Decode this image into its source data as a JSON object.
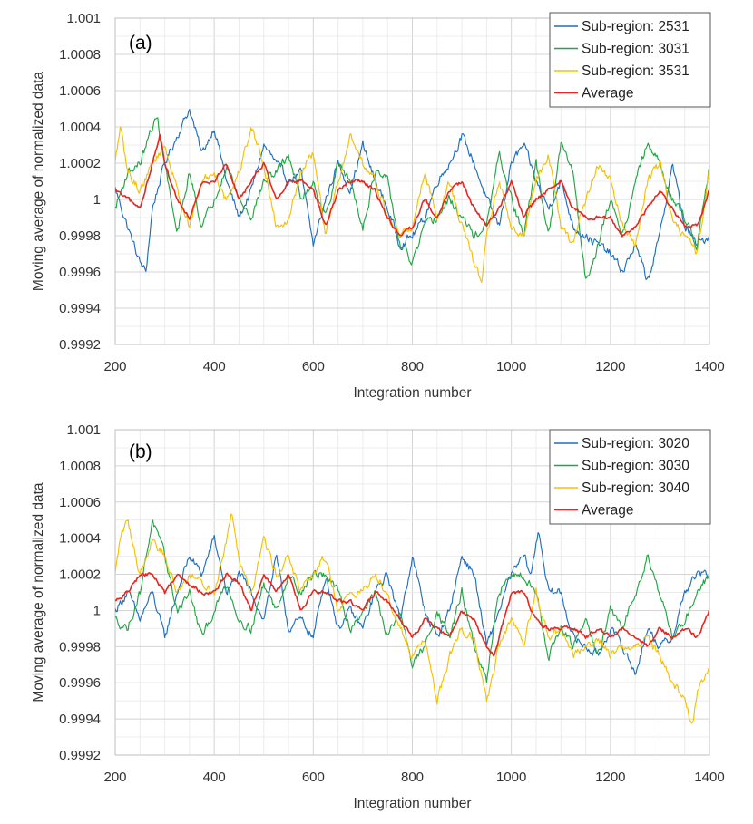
{
  "chart_data": [
    {
      "type": "line",
      "panel_label": "(a)",
      "xlabel": "Integration number",
      "ylabel": "Moving average of normalized data",
      "xlim": [
        200,
        1400
      ],
      "ylim": [
        0.9992,
        1.001
      ],
      "x_ticks": [
        200,
        400,
        600,
        800,
        1000,
        1200,
        1400
      ],
      "x_tick_labels": [
        "200",
        "400",
        "600",
        "800",
        "1000",
        "1200",
        "1400"
      ],
      "y_ticks": [
        0.9992,
        0.9994,
        0.9996,
        0.9998,
        1.0,
        1.0002,
        1.0004,
        1.0006,
        1.0008,
        1.001
      ],
      "y_tick_labels": [
        "0.9992",
        "0.9994",
        "0.9996",
        "0.9998",
        "1",
        "1.0002",
        "1.0004",
        "1.0006",
        "1.0008",
        "1.001"
      ],
      "legend_position": "top-right",
      "series": [
        {
          "name": "Sub-region: 2531",
          "color": "#1f6fc0",
          "x": [
            200,
            225,
            250,
            262,
            275,
            300,
            325,
            350,
            375,
            400,
            425,
            450,
            475,
            500,
            525,
            550,
            575,
            600,
            625,
            650,
            675,
            700,
            725,
            750,
            775,
            800,
            825,
            850,
            875,
            900,
            925,
            950,
            975,
            1000,
            1025,
            1050,
            1075,
            1100,
            1125,
            1150,
            1175,
            1200,
            1225,
            1250,
            1275,
            1300,
            1325,
            1350,
            1375,
            1400
          ],
          "values": [
            1.00006,
            0.99985,
            0.99965,
            0.9996,
            0.99995,
            1.0002,
            1.00035,
            1.0005,
            1.00025,
            1.0004,
            1.0001,
            0.9999,
            1.00005,
            1.0003,
            1.0002,
            1.0001,
            1.00015,
            0.99975,
            1.0,
            1.0002,
            1.00005,
            1.0003,
            1.0001,
            0.99995,
            0.99975,
            0.9998,
            0.9999,
            1.0001,
            1.0002,
            1.00035,
            1.0002,
            1.0,
            0.99985,
            1.0002,
            1.0003,
            1.0001,
            0.99995,
            1.0001,
            0.99985,
            0.9998,
            0.99975,
            0.9997,
            0.9996,
            0.99975,
            0.99955,
            0.9998,
            1.0002,
            0.99985,
            0.99975,
            0.9998
          ]
        },
        {
          "name": "Sub-region: 3031",
          "color": "#21a644",
          "x": [
            200,
            225,
            250,
            275,
            285,
            300,
            325,
            350,
            375,
            400,
            425,
            450,
            475,
            500,
            525,
            550,
            575,
            600,
            625,
            650,
            675,
            700,
            725,
            750,
            775,
            800,
            825,
            850,
            875,
            900,
            925,
            950,
            975,
            1000,
            1025,
            1050,
            1075,
            1100,
            1125,
            1150,
            1175,
            1200,
            1225,
            1250,
            1275,
            1300,
            1325,
            1350,
            1375,
            1400
          ],
          "values": [
            0.99995,
            1.00015,
            1.0002,
            1.0004,
            1.00045,
            1.0002,
            0.9998,
            1.00015,
            0.99985,
            1.0,
            1.0002,
            1.0,
            0.9999,
            1.0001,
            1.00015,
            1.00025,
            1.0,
            1.0001,
            0.9999,
            1.0002,
            1.0001,
            0.99985,
            1.00015,
            1.0001,
            0.99975,
            0.99965,
            0.99985,
            0.9999,
            1.0,
            0.9999,
            0.9998,
            0.99985,
            1.00025,
            1.0,
            0.9998,
            1.0002,
            0.9998,
            1.0003,
            1.00015,
            0.99955,
            0.99975,
            1.0,
            0.9998,
            1.0001,
            1.0003,
            1.0002,
            1.0,
            0.9999,
            0.99975,
            1.0002
          ]
        },
        {
          "name": "Sub-region: 3531",
          "color": "#f5c000",
          "x": [
            200,
            210,
            225,
            250,
            275,
            300,
            325,
            350,
            375,
            400,
            425,
            450,
            475,
            500,
            525,
            550,
            575,
            600,
            625,
            650,
            675,
            700,
            725,
            750,
            775,
            800,
            825,
            850,
            875,
            900,
            925,
            940,
            950,
            975,
            1000,
            1025,
            1050,
            1075,
            1100,
            1125,
            1150,
            1175,
            1200,
            1225,
            1250,
            1275,
            1300,
            1325,
            1350,
            1375,
            1400
          ],
          "values": [
            1.0002,
            1.0004,
            1.00015,
            1.00005,
            1.0002,
            1.0003,
            1.00005,
            0.99985,
            1.0001,
            1.00015,
            1.0,
            1.00015,
            1.0004,
            1.0002,
            0.99985,
            0.9999,
            1.00015,
            1.00025,
            0.9998,
            1.0001,
            1.00035,
            1.0002,
            1.0001,
            0.9999,
            0.9998,
            0.99985,
            1.00015,
            0.9999,
            1.0001,
            0.99985,
            0.99965,
            0.99955,
            0.9998,
            1.0001,
            0.99985,
            0.9998,
            1.0001,
            1.00025,
            0.99985,
            0.99975,
            1.0,
            1.0002,
            1.0001,
            0.99985,
            0.99975,
            1.0001,
            1.0002,
            0.9999,
            0.9998,
            0.9997,
            1.00015
          ]
        },
        {
          "name": "Average",
          "color": "#e8251f",
          "x": [
            200,
            225,
            250,
            275,
            290,
            300,
            325,
            350,
            375,
            400,
            425,
            450,
            475,
            500,
            525,
            550,
            575,
            600,
            625,
            650,
            675,
            700,
            725,
            750,
            775,
            800,
            825,
            850,
            875,
            900,
            925,
            950,
            975,
            1000,
            1025,
            1050,
            1075,
            1100,
            1125,
            1150,
            1175,
            1200,
            1225,
            1250,
            1275,
            1300,
            1325,
            1350,
            1375,
            1400
          ],
          "values": [
            1.00005,
            1.0,
            0.99995,
            1.0002,
            1.00035,
            1.0002,
            1.0,
            0.9999,
            1.0001,
            1.0001,
            1.0002,
            1.0,
            1.0001,
            1.0002,
            1.0,
            1.0001,
            1.0001,
            1.00005,
            0.99985,
            1.00005,
            1.0001,
            1.0001,
            1.00005,
            0.9999,
            0.9998,
            0.99985,
            1.0,
            0.9999,
            1.00005,
            1.0001,
            0.99995,
            0.99985,
            0.99995,
            1.0001,
            0.9999,
            1.0,
            1.00005,
            1.0001,
            0.99995,
            0.9999,
            0.9999,
            0.9999,
            0.9998,
            0.99985,
            0.99995,
            1.00005,
            0.99995,
            0.99985,
            0.99985,
            1.00005
          ]
        }
      ]
    },
    {
      "type": "line",
      "panel_label": "(b)",
      "xlabel": "Integration number",
      "ylabel": "Moving average of normalized data",
      "xlim": [
        200,
        1400
      ],
      "ylim": [
        0.9992,
        1.001
      ],
      "x_ticks": [
        200,
        400,
        600,
        800,
        1000,
        1200,
        1400
      ],
      "x_tick_labels": [
        "200",
        "400",
        "600",
        "800",
        "1000",
        "1200",
        "1400"
      ],
      "y_ticks": [
        0.9992,
        0.9994,
        0.9996,
        0.9998,
        1.0,
        1.0002,
        1.0004,
        1.0006,
        1.0008,
        1.001
      ],
      "y_tick_labels": [
        "0.9992",
        "0.9994",
        "0.9996",
        "0.9998",
        "1",
        "1.0002",
        "1.0004",
        "1.0006",
        "1.0008",
        "1.001"
      ],
      "legend_position": "top-right",
      "series": [
        {
          "name": "Sub-region: 3020",
          "color": "#1f6fc0",
          "x": [
            200,
            225,
            250,
            275,
            300,
            325,
            350,
            375,
            400,
            425,
            450,
            475,
            500,
            525,
            550,
            575,
            600,
            625,
            650,
            675,
            700,
            725,
            750,
            775,
            800,
            825,
            850,
            875,
            900,
            925,
            950,
            975,
            1000,
            1025,
            1040,
            1055,
            1075,
            1100,
            1125,
            1150,
            1175,
            1200,
            1225,
            1250,
            1275,
            1300,
            1325,
            1350,
            1375,
            1400
          ],
          "values": [
            1.0,
            1.0001,
            0.99995,
            1.0001,
            0.99985,
            1.0001,
            1.0003,
            1.0002,
            1.0004,
            1.0001,
            1.0002,
            1.0001,
            0.99995,
            1.0003,
            0.9999,
            0.99995,
            0.99985,
            1.0002,
            0.9999,
            1.0,
            0.9999,
            1.0001,
            1.0002,
            0.99995,
            1.0003,
            1.0,
            0.99985,
            1.0,
            1.0003,
            1.0002,
            0.9998,
            1.0,
            1.0002,
            1.0003,
            1.0002,
            1.00045,
            1.0001,
            1.0001,
            0.99985,
            0.9998,
            0.99975,
            0.9999,
            0.9998,
            0.99965,
            0.9999,
            0.9998,
            0.99985,
            1.0001,
            1.0002,
            1.0002
          ]
        },
        {
          "name": "Sub-region: 3030",
          "color": "#21a644",
          "x": [
            200,
            225,
            250,
            275,
            300,
            325,
            350,
            375,
            400,
            425,
            450,
            475,
            500,
            525,
            550,
            575,
            600,
            625,
            650,
            675,
            700,
            725,
            750,
            775,
            800,
            825,
            850,
            875,
            900,
            925,
            950,
            975,
            1000,
            1025,
            1050,
            1075,
            1100,
            1125,
            1150,
            1175,
            1200,
            1225,
            1250,
            1275,
            1300,
            1325,
            1350,
            1375,
            1400
          ],
          "values": [
            0.99995,
            0.9999,
            1.0001,
            1.0005,
            1.0003,
            1.0,
            1.0001,
            0.99985,
            1.0,
            1.00015,
            0.99995,
            0.9999,
            1.00015,
            1.0,
            1.0002,
            1.0001,
            1.0002,
            1.0002,
            1.0001,
            0.9999,
            1.0,
            1.0001,
            0.99985,
            1.0,
            0.9997,
            0.9998,
            1.0,
            0.99985,
            1.0001,
            0.9998,
            0.9996,
            1.0001,
            1.0002,
            1.0002,
            1.0001,
            0.99975,
            0.9999,
            0.9998,
            0.99995,
            0.99975,
            1.0,
            0.9999,
            1.0001,
            1.0003,
            1.0001,
            0.99985,
            0.99995,
            1.0001,
            1.0002
          ]
        },
        {
          "name": "Sub-region: 3040",
          "color": "#f5c000",
          "x": [
            200,
            210,
            225,
            250,
            275,
            300,
            325,
            350,
            375,
            400,
            425,
            435,
            450,
            475,
            500,
            525,
            550,
            575,
            600,
            625,
            650,
            675,
            700,
            725,
            750,
            775,
            800,
            825,
            850,
            875,
            900,
            925,
            950,
            975,
            1000,
            1025,
            1050,
            1075,
            1100,
            1125,
            1150,
            1175,
            1200,
            1225,
            1250,
            1275,
            1300,
            1325,
            1350,
            1365,
            1375,
            1400
          ],
          "values": [
            1.0002,
            1.0004,
            1.0005,
            1.0002,
            1.0004,
            1.0003,
            1.0001,
            1.0002,
            1.00015,
            1.0001,
            1.0004,
            1.00055,
            1.0003,
            1.0001,
            1.0004,
            1.0002,
            1.0003,
            1.0001,
            1.0002,
            1.0003,
            1.0,
            1.0001,
            1.0001,
            1.0002,
            1.0001,
            0.9999,
            0.99975,
            0.99985,
            0.9995,
            0.99975,
            0.9999,
            0.99985,
            0.9995,
            0.9998,
            0.99995,
            0.9998,
            1.0001,
            0.99985,
            0.9999,
            0.99975,
            0.9998,
            0.99985,
            0.99975,
            0.9998,
            0.9998,
            0.99985,
            0.99975,
            0.9996,
            0.9995,
            0.99935,
            0.99955,
            0.9997
          ]
        },
        {
          "name": "Average",
          "color": "#e8251f",
          "x": [
            200,
            225,
            250,
            275,
            300,
            325,
            350,
            375,
            400,
            425,
            450,
            475,
            500,
            525,
            550,
            575,
            600,
            625,
            650,
            675,
            700,
            725,
            750,
            775,
            800,
            825,
            850,
            875,
            900,
            925,
            950,
            965,
            975,
            1000,
            1025,
            1050,
            1075,
            1100,
            1125,
            1150,
            1175,
            1200,
            1225,
            1250,
            1275,
            1300,
            1325,
            1350,
            1375,
            1400
          ],
          "values": [
            1.00005,
            1.0001,
            1.0002,
            1.0002,
            1.0001,
            1.0002,
            1.00015,
            1.0001,
            1.0001,
            1.0002,
            1.00015,
            1.0,
            1.0002,
            1.0001,
            1.0002,
            1.0,
            1.0001,
            1.0001,
            1.00005,
            1.00005,
            1.0,
            1.0001,
            1.00005,
            0.99995,
            0.99985,
            0.99995,
            0.9999,
            0.99985,
            1.0,
            0.99995,
            0.9998,
            0.99975,
            0.99985,
            1.0001,
            1.0001,
            0.99995,
            0.9999,
            0.9999,
            0.9999,
            0.99985,
            0.9999,
            0.99985,
            0.9999,
            0.99985,
            0.9998,
            0.9999,
            0.99985,
            0.9999,
            0.99985,
            1.0
          ]
        }
      ]
    }
  ]
}
